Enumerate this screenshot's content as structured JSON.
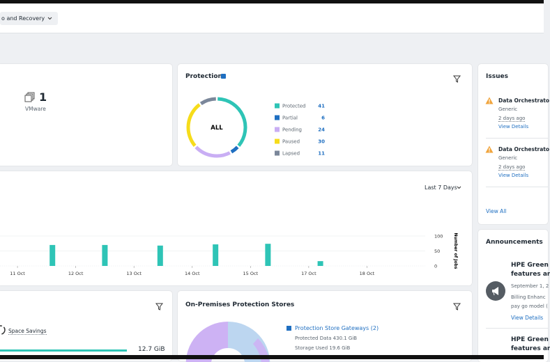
{
  "header": {
    "app_selector": "o and Recovery"
  },
  "vm_card": {
    "count": "1",
    "label": "VMware"
  },
  "chart_data": [
    {
      "type": "donut",
      "title": "Protection",
      "center_label": "ALL",
      "categories": [
        "Protected",
        "Partial",
        "Pending",
        "Paused",
        "Lapsed"
      ],
      "values": [
        41,
        6,
        24,
        30,
        11
      ],
      "colors": [
        "#2ec4b6",
        "#1f6fc1",
        "#c9aef4",
        "#f6dc1b",
        "#7b879a"
      ]
    },
    {
      "type": "bar",
      "y_label": "Number of Jobs",
      "color": "#2ec4b6",
      "x": [
        11.6,
        12.5,
        13.45,
        14.4,
        15.3,
        16.2
      ],
      "values": [
        70,
        70,
        68,
        72,
        74,
        16
      ],
      "xlim": [
        10.7,
        18.0
      ],
      "xticks": [
        {
          "value": 11,
          "label": "11 Oct"
        },
        {
          "value": 12,
          "label": "12 Oct"
        },
        {
          "value": 13,
          "label": "13 Oct"
        },
        {
          "value": 14,
          "label": "14 Oct"
        },
        {
          "value": 15,
          "label": "15 Oct"
        },
        {
          "value": 16,
          "label": "17 Oct"
        },
        {
          "value": 17,
          "label": "18 Oct"
        }
      ],
      "ylim": [
        0,
        100
      ],
      "yticks": [
        0,
        50,
        100
      ],
      "range_selector": "Last 7 Days"
    }
  ],
  "issues": {
    "title": "Issues",
    "items": [
      {
        "title": "Data Orchestrato",
        "type": "Generic",
        "time": "2 days ago",
        "link": "View Details"
      },
      {
        "title": "Data Orchestrato",
        "type": "Generic",
        "time": "2 days ago",
        "link": "View Details"
      }
    ],
    "footer_link": "View All"
  },
  "announcements": {
    "title": "Announcements",
    "items": [
      {
        "title_lines": [
          "HPE Green",
          "features ar"
        ],
        "date": "September 1, 2",
        "body_lines": [
          "Billing Enhanc",
          "pay go model ("
        ],
        "link": "View Details"
      },
      {
        "title_lines": [
          "HPE Green",
          "features ar"
        ]
      }
    ]
  },
  "space": {
    "label": "Space Savings",
    "value": "12.7 GiB"
  },
  "stores": {
    "title": "On-Premises Protection Stores",
    "legend_link": "Protection Store Gateways (2)",
    "lines": [
      "Protected Data 430.1 GiB",
      "Storage Used 19.6 GiB"
    ]
  }
}
